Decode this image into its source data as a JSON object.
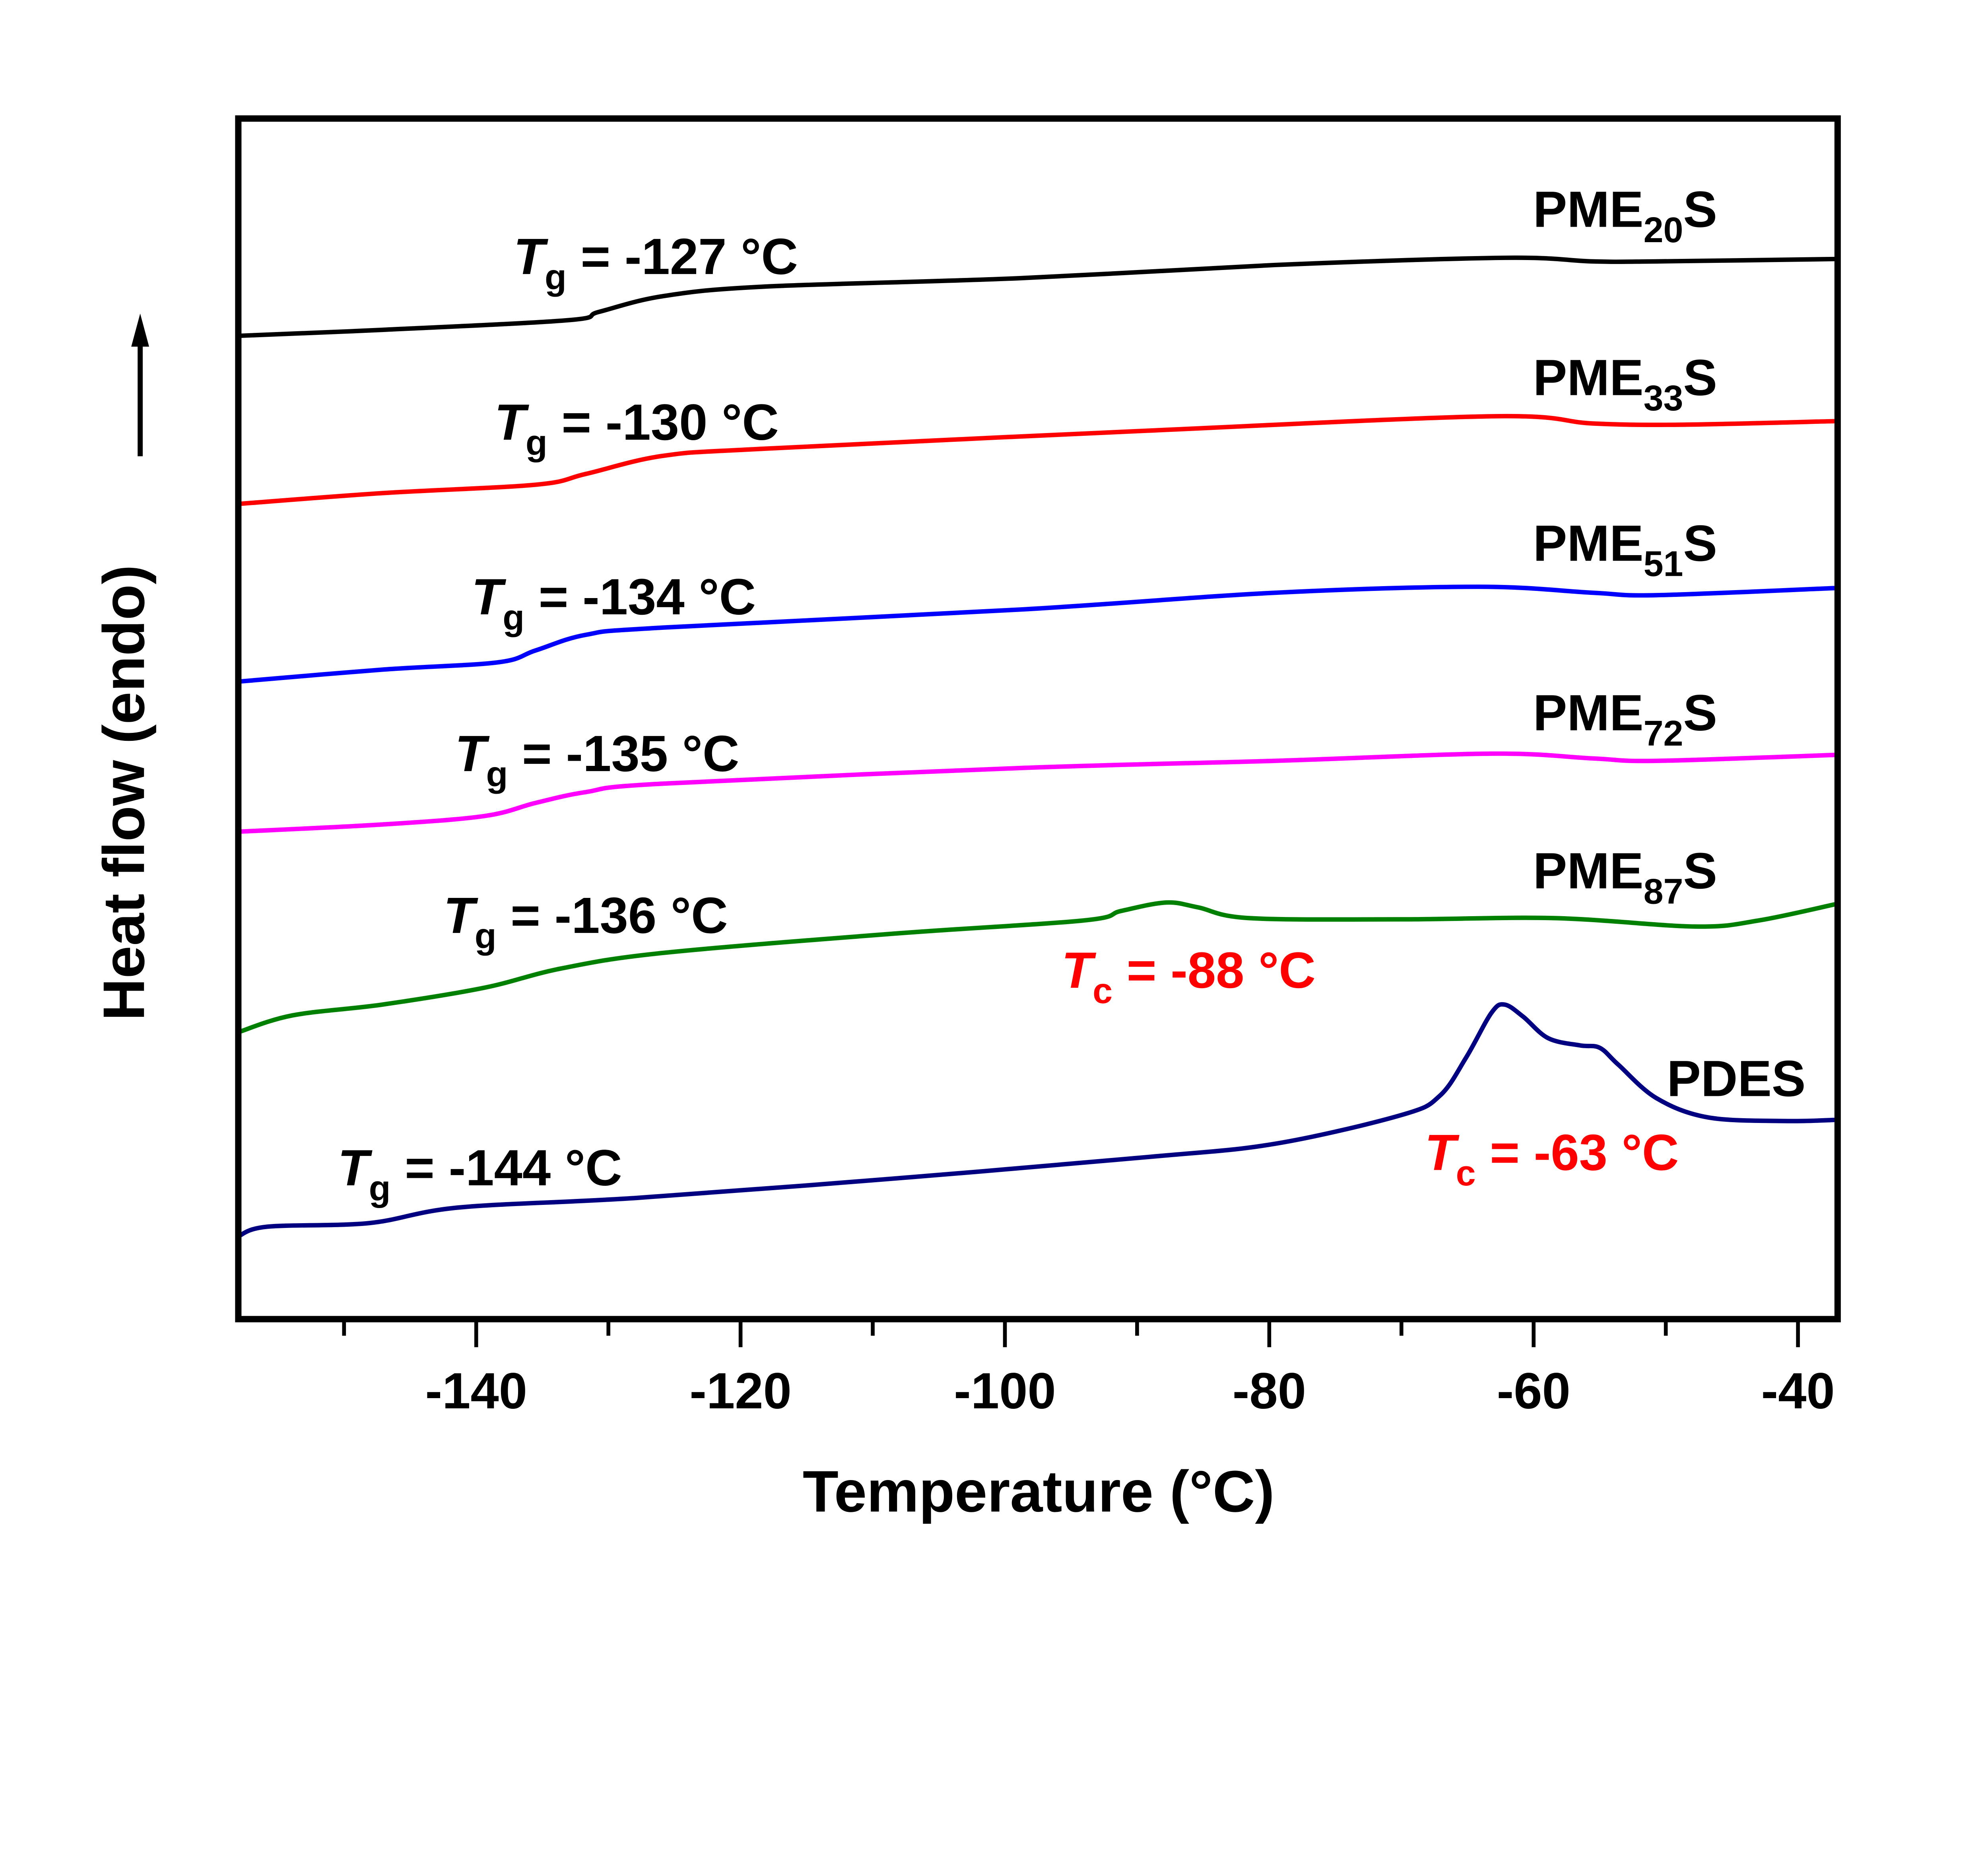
{
  "chart_data": {
    "type": "line",
    "title": "",
    "xlabel": "Temperature (°C)",
    "ylabel": "Heat flow (endo)",
    "y_direction_arrow": "up",
    "xlim": [
      -158,
      -37
    ],
    "ylim": [
      0,
      100
    ],
    "y_units": "arbitrary (stacked, no tick labels)",
    "x_major_ticks": [
      -140,
      -120,
      -100,
      -80,
      -60,
      -40
    ],
    "x_minor_ticks": [
      -150,
      -130,
      -110,
      -90,
      -70,
      -50
    ],
    "x_tick_labels": [
      "-140",
      "-120",
      "-100",
      "-80",
      "-60",
      "-40"
    ],
    "grid": false,
    "series": [
      {
        "name_main": "PME",
        "name_sub": "20",
        "name_end": "S",
        "color": "#000000",
        "x": [
          -158,
          -147.1,
          -133.1,
          -130.7,
          -125.9,
          -118.2,
          -98.9,
          -79.6,
          -62.2,
          -55.5,
          -50.7,
          -37
        ],
        "y": [
          81.9,
          82.4,
          83.2,
          83.9,
          85.2,
          86.0,
          86.7,
          87.8,
          88.4,
          88.1,
          88.1,
          88.3
        ],
        "annotation": {
          "symbol": "T",
          "sub": "g",
          "text": " = -127 °C",
          "color": "#000000"
        }
      },
      {
        "name_main": "PME",
        "name_sub": "33",
        "name_end": "S",
        "color": "#ff0000",
        "x": [
          -158,
          -147.1,
          -135.5,
          -131.7,
          -125.9,
          -118.2,
          -89.2,
          -63.2,
          -55.5,
          -48.7,
          -37
        ],
        "y": [
          67.9,
          68.8,
          69.5,
          70.4,
          71.9,
          72.5,
          74.0,
          75.2,
          74.6,
          74.5,
          74.8
        ],
        "annotation": {
          "symbol": "T",
          "sub": "g",
          "text": " = -130 °C",
          "color": "#000000"
        }
      },
      {
        "name_main": "PME",
        "name_sub": "51",
        "name_end": "S",
        "color": "#0000ff",
        "x": [
          -158,
          -147.1,
          -138.4,
          -135.5,
          -131.7,
          -125.9,
          -98.9,
          -79.6,
          -64.2,
          -55.5,
          -50.7,
          -37
        ],
        "y": [
          53.1,
          54.1,
          54.7,
          55.7,
          57.0,
          57.6,
          59.1,
          60.5,
          61.0,
          60.5,
          60.3,
          60.9
        ],
        "annotation": {
          "symbol": "T",
          "sub": "g",
          "text": " = -134 °C",
          "color": "#000000"
        }
      },
      {
        "name_main": "PME",
        "name_sub": "72",
        "name_end": "S",
        "color": "#ff00ff",
        "x": [
          -158,
          -147.1,
          -139.4,
          -135.5,
          -131.7,
          -125.9,
          -98.9,
          -79.6,
          -63.2,
          -55.5,
          -50.7,
          -37
        ],
        "y": [
          40.6,
          41.2,
          41.9,
          43.0,
          43.9,
          44.6,
          45.9,
          46.5,
          47.1,
          46.7,
          46.5,
          47.0
        ],
        "annotation": {
          "symbol": "T",
          "sub": "g",
          "text": " = -135 °C",
          "color": "#000000"
        }
      },
      {
        "name_main": "PME",
        "name_sub": "87",
        "name_end": "S",
        "color": "#008000",
        "x": [
          -158,
          -153.9,
          -147.1,
          -139.4,
          -133.6,
          -125.9,
          -108.5,
          -94.1,
          -91.2,
          -87.8,
          -85.4,
          -81.5,
          -70.0,
          -58.4,
          -47.8,
          -43.0,
          -37
        ],
        "y": [
          23.9,
          25.3,
          26.2,
          27.6,
          29.2,
          30.5,
          32.1,
          33.2,
          34.0,
          34.7,
          34.3,
          33.4,
          33.3,
          33.4,
          32.7,
          33.2,
          34.6
        ],
        "annotation": {
          "symbol": "T",
          "sub": "g",
          "text": " = -136 °C",
          "color": "#000000"
        },
        "annotation2": {
          "symbol": "T",
          "sub": "c",
          "text": " = -88 °C",
          "color": "#ff0000"
        }
      },
      {
        "name_main": "PDES",
        "name_sub": "",
        "name_end": "",
        "color": "#000080",
        "x": [
          -158,
          -155.8,
          -148.1,
          -141.3,
          -127.8,
          -108.5,
          -89.2,
          -79.6,
          -70.0,
          -67.1,
          -65.1,
          -63.2,
          -62.2,
          -60.8,
          -58.9,
          -56.5,
          -55.0,
          -53.6,
          -50.7,
          -46.8,
          -41.0,
          -37
        ],
        "y": [
          6.9,
          7.7,
          8.0,
          9.3,
          10.1,
          11.7,
          13.5,
          14.6,
          17.0,
          18.6,
          21.8,
          25.5,
          26.2,
          25.2,
          23.4,
          22.8,
          22.6,
          21.2,
          18.4,
          16.8,
          16.5,
          16.6
        ],
        "annotation": {
          "symbol": "T",
          "sub": "g",
          "text": " = -144 °C",
          "color": "#000000"
        },
        "annotation2": {
          "symbol": "T",
          "sub": "c",
          "text": " = -63 °C",
          "color": "#ff0000"
        }
      }
    ]
  }
}
